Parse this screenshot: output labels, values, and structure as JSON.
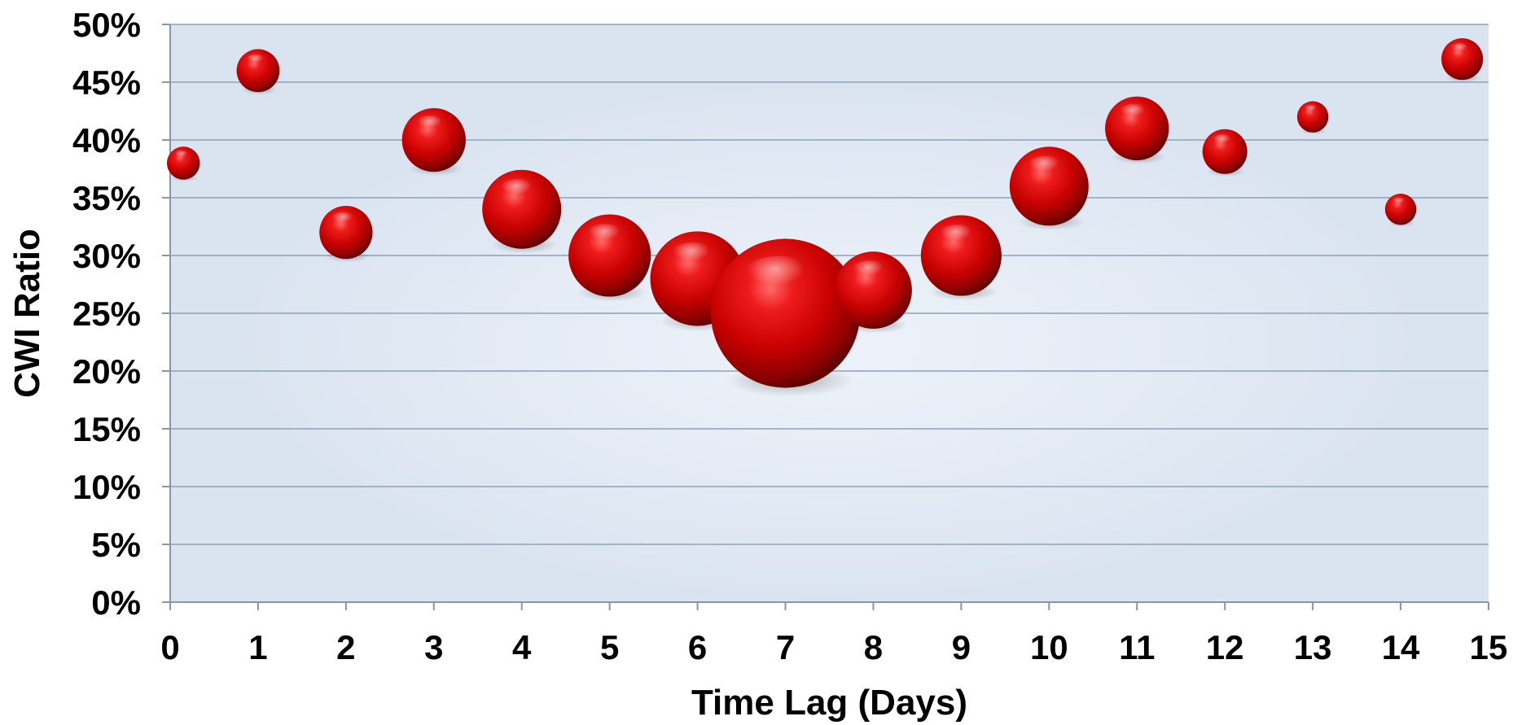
{
  "chart_data": {
    "type": "scatter",
    "subtype": "bubble",
    "title": "",
    "xlabel": "Time Lag (Days)",
    "ylabel": "CWI Ratio",
    "xlim": [
      0,
      15
    ],
    "ylim": [
      0,
      0.5
    ],
    "x_ticks": [
      "0",
      "1",
      "2",
      "3",
      "4",
      "5",
      "6",
      "7",
      "8",
      "9",
      "10",
      "11",
      "12",
      "13",
      "14",
      "15"
    ],
    "y_ticks": [
      "0%",
      "5%",
      "10%",
      "15%",
      "20%",
      "25%",
      "30%",
      "35%",
      "40%",
      "45%",
      "50%"
    ],
    "grid": true,
    "legend": "none",
    "bubble_color": "#cc0000",
    "plot_background": "#d9e3f0",
    "points": [
      {
        "x": 0.15,
        "y": 0.38,
        "size": 2.0
      },
      {
        "x": 1.0,
        "y": 0.46,
        "size": 3.4
      },
      {
        "x": 2.0,
        "y": 0.32,
        "size": 5.2
      },
      {
        "x": 3.0,
        "y": 0.4,
        "size": 7.5
      },
      {
        "x": 4.0,
        "y": 0.34,
        "size": 11.5
      },
      {
        "x": 5.0,
        "y": 0.3,
        "size": 12.5
      },
      {
        "x": 6.0,
        "y": 0.28,
        "size": 16.5
      },
      {
        "x": 7.0,
        "y": 0.25,
        "size": 41.0
      },
      {
        "x": 8.0,
        "y": 0.27,
        "size": 11.0
      },
      {
        "x": 9.0,
        "y": 0.3,
        "size": 12.0
      },
      {
        "x": 10.0,
        "y": 0.36,
        "size": 11.5
      },
      {
        "x": 11.0,
        "y": 0.41,
        "size": 7.5
      },
      {
        "x": 12.0,
        "y": 0.39,
        "size": 3.7
      },
      {
        "x": 13.0,
        "y": 0.42,
        "size": 1.8
      },
      {
        "x": 14.0,
        "y": 0.34,
        "size": 1.8
      },
      {
        "x": 14.7,
        "y": 0.47,
        "size": 3.2
      }
    ]
  }
}
